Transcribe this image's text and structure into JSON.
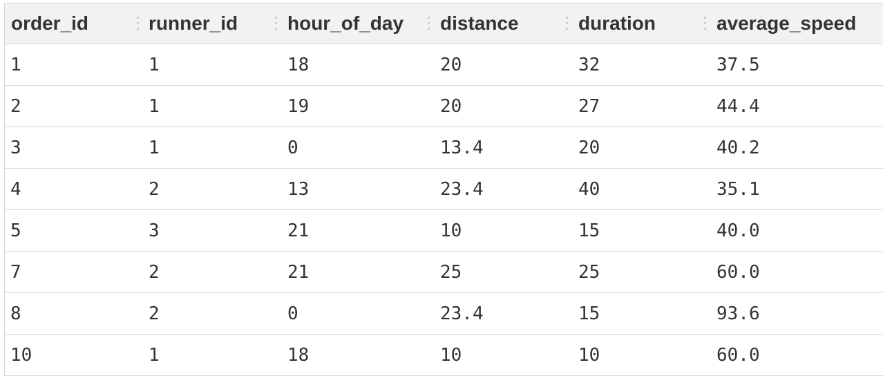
{
  "table": {
    "columns": [
      "order_id",
      "runner_id",
      "hour_of_day",
      "distance",
      "duration",
      "average_speed"
    ],
    "rows": [
      [
        "1",
        "1",
        "18",
        "20",
        "32",
        "37.5"
      ],
      [
        "2",
        "1",
        "19",
        "20",
        "27",
        "44.4"
      ],
      [
        "3",
        "1",
        "0",
        "13.4",
        "20",
        "40.2"
      ],
      [
        "4",
        "2",
        "13",
        "23.4",
        "40",
        "35.1"
      ],
      [
        "5",
        "3",
        "21",
        "10",
        "15",
        "40.0"
      ],
      [
        "7",
        "2",
        "21",
        "25",
        "25",
        "60.0"
      ],
      [
        "8",
        "2",
        "0",
        "23.4",
        "15",
        "93.6"
      ],
      [
        "10",
        "1",
        "18",
        "10",
        "10",
        "60.0"
      ]
    ]
  },
  "icons": {
    "column_resize_handle": "drag-handle-icon"
  }
}
